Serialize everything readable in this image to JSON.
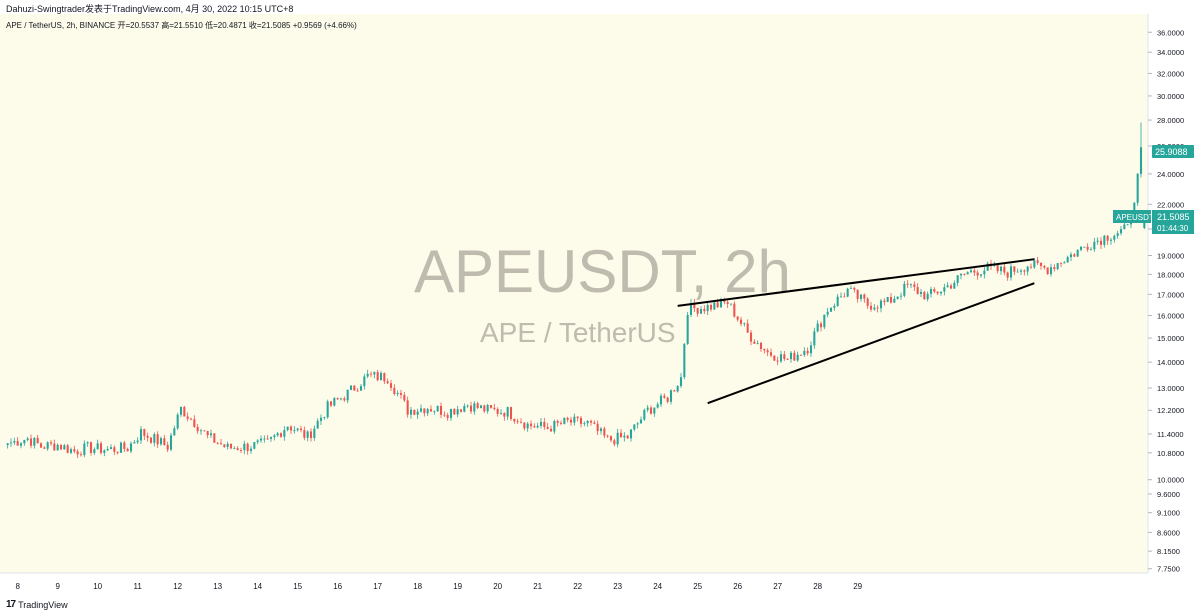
{
  "header": {
    "publish_line": "Dahuzi-Swingtrader发表于TradingView.com, 4月 30, 2022 10:15 UTC+8"
  },
  "legend": {
    "text": "APE / TetherUS, 2h, BINANCE 开=20.5537 高=21.5510 低=20.4871 收=21.5085 +0.9569 (+4.66%)"
  },
  "watermark": {
    "symbol": "APEUSDT, 2h",
    "name": "APE / TetherUS"
  },
  "footer": {
    "brand": "TradingView",
    "logo": "17"
  },
  "colors": {
    "background": "#fdfbe9",
    "up": "#26a69a",
    "down": "#ef5350",
    "axis_text": "#131722",
    "watermark": "#a9a69a",
    "label_bg": "#26a69a"
  },
  "price_labels": {
    "high_label": "25.9088",
    "last_symbol": "APEUSDT",
    "last_price": "21.5085",
    "countdown": "01:44:30"
  },
  "chart_data": {
    "type": "candlestick",
    "title": "",
    "yscale": "log",
    "ylim": [
      7.7,
      37.5
    ],
    "y_ticks": [
      "36.0000",
      "34.0000",
      "32.0000",
      "30.0000",
      "28.0000",
      "26.0000",
      "24.0000",
      "22.0000",
      "20.5000",
      "19.0000",
      "18.0000",
      "17.0000",
      "16.0000",
      "15.0000",
      "14.0000",
      "13.0000",
      "12.2000",
      "11.4000",
      "10.8000",
      "10.0000",
      "9.6000",
      "9.1000",
      "8.6000",
      "8.1500",
      "7.7500"
    ],
    "x_ticks": [
      "8",
      "9",
      "10",
      "11",
      "12",
      "13",
      "14",
      "15",
      "16",
      "17",
      "18",
      "19",
      "20",
      "21",
      "22",
      "23",
      "24",
      "25",
      "26",
      "27",
      "28",
      "29"
    ],
    "x_tick_index_start": 0,
    "candles_per_day": 12,
    "ohlc_close_anchors": [
      [
        0,
        11.1
      ],
      [
        6,
        11.25
      ],
      [
        10,
        11.0
      ],
      [
        15,
        11.05
      ],
      [
        20,
        10.85
      ],
      [
        24,
        10.95
      ],
      [
        30,
        10.9
      ],
      [
        36,
        10.95
      ],
      [
        40,
        11.45
      ],
      [
        48,
        11.0
      ],
      [
        52,
        12.25
      ],
      [
        56,
        11.8
      ],
      [
        60,
        11.3
      ],
      [
        66,
        10.95
      ],
      [
        72,
        11.0
      ],
      [
        78,
        11.1
      ],
      [
        84,
        11.7
      ],
      [
        90,
        11.3
      ],
      [
        96,
        12.3
      ],
      [
        102,
        12.8
      ],
      [
        108,
        13.45
      ],
      [
        114,
        13.4
      ],
      [
        120,
        12.2
      ],
      [
        126,
        12.3
      ],
      [
        132,
        12.15
      ],
      [
        138,
        12.4
      ],
      [
        144,
        12.2
      ],
      [
        150,
        12.15
      ],
      [
        156,
        11.7
      ],
      [
        162,
        11.6
      ],
      [
        168,
        11.8
      ],
      [
        174,
        11.75
      ],
      [
        180,
        11.2
      ],
      [
        186,
        11.3
      ],
      [
        192,
        12.2
      ],
      [
        198,
        12.65
      ],
      [
        202,
        13.4
      ],
      [
        204,
        16.3
      ],
      [
        210,
        16.4
      ],
      [
        216,
        16.6
      ],
      [
        222,
        15.2
      ],
      [
        228,
        14.4
      ],
      [
        234,
        14.1
      ],
      [
        240,
        14.6
      ],
      [
        246,
        16.3
      ],
      [
        252,
        17.2
      ],
      [
        258,
        16.5
      ],
      [
        264,
        16.6
      ],
      [
        270,
        17.4
      ],
      [
        276,
        16.9
      ],
      [
        282,
        17.4
      ],
      [
        288,
        18.1
      ],
      [
        294,
        18.3
      ],
      [
        300,
        18.1
      ],
      [
        306,
        18.5
      ],
      [
        312,
        18.3
      ],
      [
        318,
        18.9
      ],
      [
        324,
        19.6
      ],
      [
        330,
        20.1
      ],
      [
        336,
        20.5
      ],
      [
        338,
        22.1
      ],
      [
        340,
        25.9
      ],
      [
        341,
        21.51
      ]
    ],
    "last_candle": {
      "open": 20.5537,
      "high": 21.551,
      "low": 20.4871,
      "close": 21.5085,
      "change": 0.9569,
      "change_pct": 4.66
    },
    "trendlines": [
      {
        "name": "upper-wedge-line",
        "from": {
          "x_index": 201,
          "y": 16.45
        },
        "to": {
          "x_index": 308,
          "y": 18.8
        }
      },
      {
        "name": "lower-wedge-line",
        "from": {
          "x_index": 210,
          "y": 12.45
        },
        "to": {
          "x_index": 308,
          "y": 17.55
        }
      }
    ],
    "grid": false,
    "legend": "top-left"
  }
}
